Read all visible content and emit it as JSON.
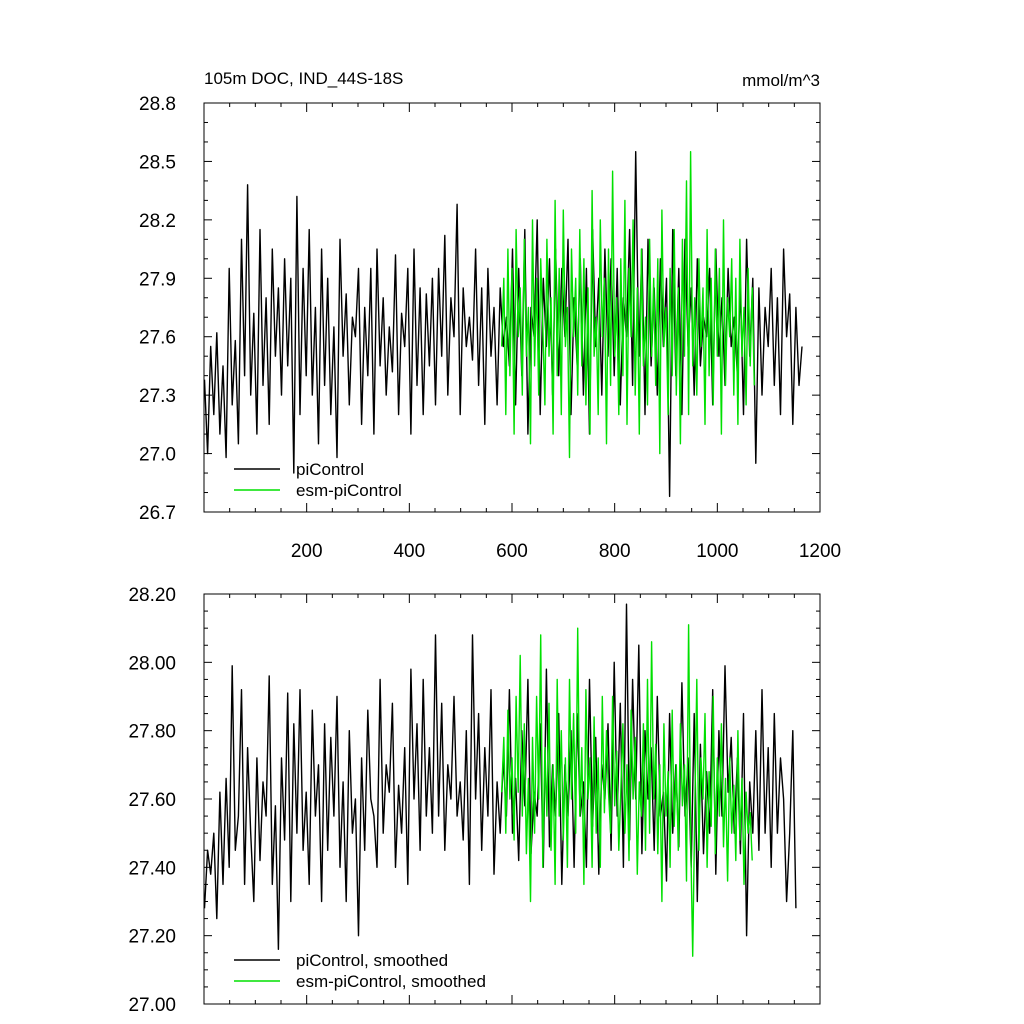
{
  "chart_data": [
    {
      "type": "line",
      "title": "105m DOC, IND_44S-18S",
      "units_label": "mmol/m^3",
      "xlim": [
        0,
        1200
      ],
      "ylim": [
        26.7,
        28.8
      ],
      "x_ticks": [
        200,
        400,
        600,
        800,
        1000,
        1200
      ],
      "x_tick_labels": [
        "200",
        "400",
        "600",
        "800",
        "1000",
        "1200"
      ],
      "y_ticks": [
        26.7,
        27.0,
        27.3,
        27.6,
        27.9,
        28.2,
        28.5,
        28.8
      ],
      "y_tick_labels": [
        "26.7",
        "27.0",
        "27.3",
        "27.6",
        "27.9",
        "28.2",
        "28.5",
        "28.8"
      ],
      "legend_position": "bottom-left",
      "grid": false,
      "series": [
        {
          "name": "piControl",
          "color": "#000000",
          "x_start": 1,
          "x_step": 6,
          "values": [
            27.38,
            27.0,
            27.55,
            27.2,
            27.62,
            27.1,
            27.45,
            26.98,
            27.95,
            27.25,
            27.58,
            27.05,
            28.1,
            27.4,
            28.38,
            27.3,
            27.72,
            27.1,
            28.15,
            27.35,
            27.8,
            27.15,
            28.05,
            27.5,
            27.85,
            27.3,
            28.0,
            27.45,
            27.9,
            26.9,
            28.32,
            27.2,
            27.95,
            27.4,
            28.15,
            27.3,
            27.75,
            27.05,
            28.05,
            27.35,
            27.9,
            27.2,
            27.65,
            26.98,
            28.1,
            27.5,
            27.82,
            27.25,
            27.7,
            27.6,
            27.95,
            27.15,
            27.75,
            27.4,
            27.95,
            27.1,
            28.05,
            27.45,
            27.8,
            27.3,
            27.65,
            27.42,
            28.02,
            27.2,
            27.72,
            27.55,
            27.95,
            27.1,
            28.05,
            27.35,
            27.85,
            27.2,
            27.82,
            27.45,
            27.9,
            27.25,
            27.95,
            27.5,
            28.12,
            27.3,
            27.8,
            27.6,
            28.28,
            27.2,
            27.85,
            27.55,
            27.7,
            27.48,
            28.05,
            27.35,
            27.85,
            27.15,
            27.95,
            27.5,
            27.75,
            27.25,
            27.85,
            27.55,
            27.7,
            27.45,
            28.05,
            27.25,
            27.95,
            27.4,
            28.15,
            27.1,
            27.75,
            27.6,
            28.2,
            27.2,
            27.9,
            27.55,
            28.0,
            27.3,
            28.05,
            27.4,
            27.95,
            27.6,
            28.1,
            27.2,
            27.8,
            27.45,
            28.0,
            27.3,
            27.95,
            27.1,
            28.15,
            27.55,
            27.9,
            27.3,
            28.05,
            27.5,
            28.0,
            27.4,
            27.95,
            27.25,
            27.8,
            27.6,
            28.15,
            27.35,
            28.55,
            27.5,
            28.05,
            27.2,
            28.1,
            27.45,
            27.85,
            27.3,
            28.0,
            27.55,
            27.9,
            26.78,
            28.15,
            27.4,
            27.95,
            27.2,
            28.1,
            27.55,
            27.85,
            27.3,
            28.0,
            27.45,
            27.7,
            27.6,
            27.95,
            27.25,
            28.05,
            27.5,
            27.8,
            27.35,
            27.95,
            27.55,
            27.7,
            27.4,
            27.85,
            27.2,
            28.1,
            27.5,
            27.9,
            26.95,
            27.85,
            27.3,
            27.75,
            27.55,
            27.95,
            27.35,
            27.8,
            27.2,
            28.05,
            27.6,
            27.82,
            27.15,
            27.75,
            27.35,
            27.55
          ]
        },
        {
          "name": "esm-piControl",
          "color": "#00e000",
          "x_start": 580,
          "x_step": 4,
          "values": [
            27.55,
            27.9,
            27.2,
            28.05,
            27.4,
            27.95,
            27.1,
            28.15,
            27.6,
            27.85,
            27.3,
            28.1,
            27.5,
            27.75,
            27.05,
            28.2,
            27.45,
            27.9,
            27.3,
            28.0,
            27.65,
            27.25,
            28.1,
            27.5,
            27.8,
            27.1,
            28.3,
            27.4,
            27.95,
            27.2,
            28.25,
            27.55,
            27.75,
            26.98,
            28.05,
            27.6,
            27.9,
            27.3,
            28.15,
            27.45,
            28.0,
            27.25,
            27.85,
            27.1,
            28.35,
            27.5,
            27.7,
            27.2,
            28.2,
            27.6,
            27.9,
            27.05,
            28.05,
            27.35,
            28.45,
            27.5,
            27.8,
            27.2,
            28.0,
            27.4,
            28.3,
            27.15,
            27.95,
            27.6,
            28.2,
            27.3,
            27.85,
            27.1,
            28.05,
            27.45,
            27.7,
            27.25,
            28.1,
            27.5,
            27.9,
            27.35,
            28.0,
            27.0,
            28.25,
            27.55,
            27.75,
            27.2,
            27.95,
            27.4,
            28.15,
            27.3,
            27.85,
            27.05,
            28.1,
            27.5,
            28.4,
            27.2,
            28.55,
            27.45,
            27.8,
            27.3,
            28.0,
            27.55,
            27.85,
            27.15,
            28.15,
            27.4,
            27.9,
            27.25,
            28.05,
            27.5,
            27.95,
            27.1,
            28.2,
            27.35,
            27.8,
            27.6,
            28.0,
            27.3,
            27.9,
            27.15,
            28.1,
            27.5,
            27.75,
            27.25,
            27.95,
            27.45,
            27.85,
            27.35
          ]
        }
      ],
      "legend": [
        {
          "label": "piControl",
          "color": "#000000"
        },
        {
          "label": "esm-piControl",
          "color": "#00e000"
        }
      ]
    },
    {
      "type": "line",
      "title": "",
      "xlim": [
        0,
        1200
      ],
      "ylim": [
        27.0,
        28.2
      ],
      "y_ticks": [
        27.0,
        27.2,
        27.4,
        27.6,
        27.8,
        28.0,
        28.2
      ],
      "y_tick_labels": [
        "27.00",
        "27.20",
        "27.40",
        "27.60",
        "27.80",
        "28.00",
        "28.20"
      ],
      "legend_position": "bottom-left",
      "grid": false,
      "series": [
        {
          "name": "piControl, smoothed",
          "color": "#000000",
          "x_start": 1,
          "x_step": 6,
          "values": [
            27.28,
            27.45,
            27.38,
            27.5,
            27.25,
            27.62,
            27.35,
            27.66,
            27.4,
            27.99,
            27.45,
            27.55,
            27.92,
            27.35,
            27.75,
            27.5,
            27.3,
            27.72,
            27.42,
            27.65,
            27.55,
            27.96,
            27.35,
            27.58,
            27.16,
            27.72,
            27.48,
            27.91,
            27.3,
            27.82,
            27.5,
            27.92,
            27.45,
            27.62,
            27.35,
            27.86,
            27.55,
            27.7,
            27.3,
            27.82,
            27.45,
            27.78,
            27.55,
            27.9,
            27.4,
            27.65,
            27.3,
            27.8,
            27.5,
            27.6,
            27.2,
            27.72,
            27.45,
            27.86,
            27.6,
            27.55,
            27.4,
            27.95,
            27.5,
            27.7,
            27.62,
            27.88,
            27.4,
            27.64,
            27.5,
            27.75,
            27.35,
            27.98,
            27.6,
            27.82,
            27.45,
            27.95,
            27.55,
            27.75,
            27.5,
            28.08,
            27.55,
            27.88,
            27.45,
            27.7,
            27.6,
            27.9,
            27.55,
            27.65,
            27.48,
            27.8,
            27.35,
            28.08,
            27.6,
            27.85,
            27.45,
            27.75,
            27.55,
            27.92,
            27.38,
            27.65,
            27.5,
            27.72,
            27.55,
            27.92,
            27.5,
            27.66,
            27.42,
            27.8,
            27.58,
            27.95,
            27.44,
            27.62,
            27.55,
            27.82,
            27.4,
            27.98,
            27.46,
            27.7,
            27.55,
            27.85,
            27.35,
            27.7,
            27.55,
            27.8,
            27.4,
            27.85,
            27.55,
            27.65,
            27.4,
            27.95,
            27.52,
            27.78,
            27.38,
            27.7,
            27.6,
            27.82,
            27.45,
            28.0,
            27.55,
            27.88,
            27.4,
            28.17,
            27.48,
            27.95,
            27.6,
            28.05,
            27.44,
            27.8,
            27.6,
            27.75,
            27.45,
            27.9,
            27.55,
            27.62,
            27.36,
            27.85,
            27.5,
            27.7,
            27.46,
            27.94,
            27.55,
            27.72,
            27.4,
            27.85,
            27.3,
            27.76,
            27.44,
            27.68,
            27.5,
            27.92,
            27.38,
            27.8,
            27.55,
            27.99,
            27.62,
            27.78,
            27.5,
            27.72,
            27.44,
            27.85,
            27.2,
            27.65,
            27.5,
            27.8,
            27.45,
            27.92,
            27.5,
            27.75,
            27.4,
            27.85,
            27.5,
            27.72,
            27.6,
            27.3,
            27.5,
            27.8,
            27.28
          ]
        },
        {
          "name": "esm-piControl, smoothed",
          "color": "#00e000",
          "x_start": 580,
          "x_step": 4,
          "values": [
            27.62,
            27.78,
            27.5,
            27.86,
            27.6,
            27.72,
            27.48,
            27.9,
            27.62,
            28.02,
            27.55,
            27.82,
            27.44,
            27.66,
            27.3,
            27.78,
            27.5,
            27.9,
            27.6,
            28.08,
            27.4,
            27.75,
            27.55,
            27.88,
            27.45,
            27.7,
            27.35,
            27.95,
            27.55,
            27.8,
            27.48,
            27.72,
            27.4,
            27.95,
            27.6,
            27.85,
            27.5,
            28.1,
            27.55,
            27.75,
            27.35,
            27.92,
            27.6,
            27.72,
            27.4,
            27.84,
            27.5,
            27.72,
            27.4,
            27.9,
            27.56,
            27.8,
            27.62,
            27.5,
            27.9,
            27.58,
            27.74,
            27.45,
            27.62,
            27.82,
            27.5,
            27.7,
            27.42,
            27.86,
            27.6,
            27.78,
            27.38,
            27.65,
            27.55,
            27.82,
            27.45,
            27.95,
            27.5,
            28.06,
            27.6,
            27.76,
            27.44,
            27.7,
            27.3,
            27.82,
            27.55,
            27.68,
            27.4,
            27.86,
            27.52,
            27.7,
            27.45,
            27.82,
            27.58,
            27.7,
            27.36,
            28.11,
            27.5,
            27.14,
            27.55,
            27.95,
            27.45,
            27.72,
            27.6,
            27.85,
            27.4,
            27.68,
            27.52,
            27.9,
            27.44,
            27.72,
            27.55,
            27.82,
            27.46,
            27.66,
            27.36,
            27.72,
            27.5,
            27.64,
            27.42,
            27.8,
            27.48,
            27.66,
            27.35,
            27.62,
            27.5,
            27.56,
            27.42
          ]
        }
      ],
      "legend": [
        {
          "label": "piControl, smoothed",
          "color": "#000000"
        },
        {
          "label": "esm-piControl, smoothed",
          "color": "#00e000"
        }
      ]
    }
  ]
}
